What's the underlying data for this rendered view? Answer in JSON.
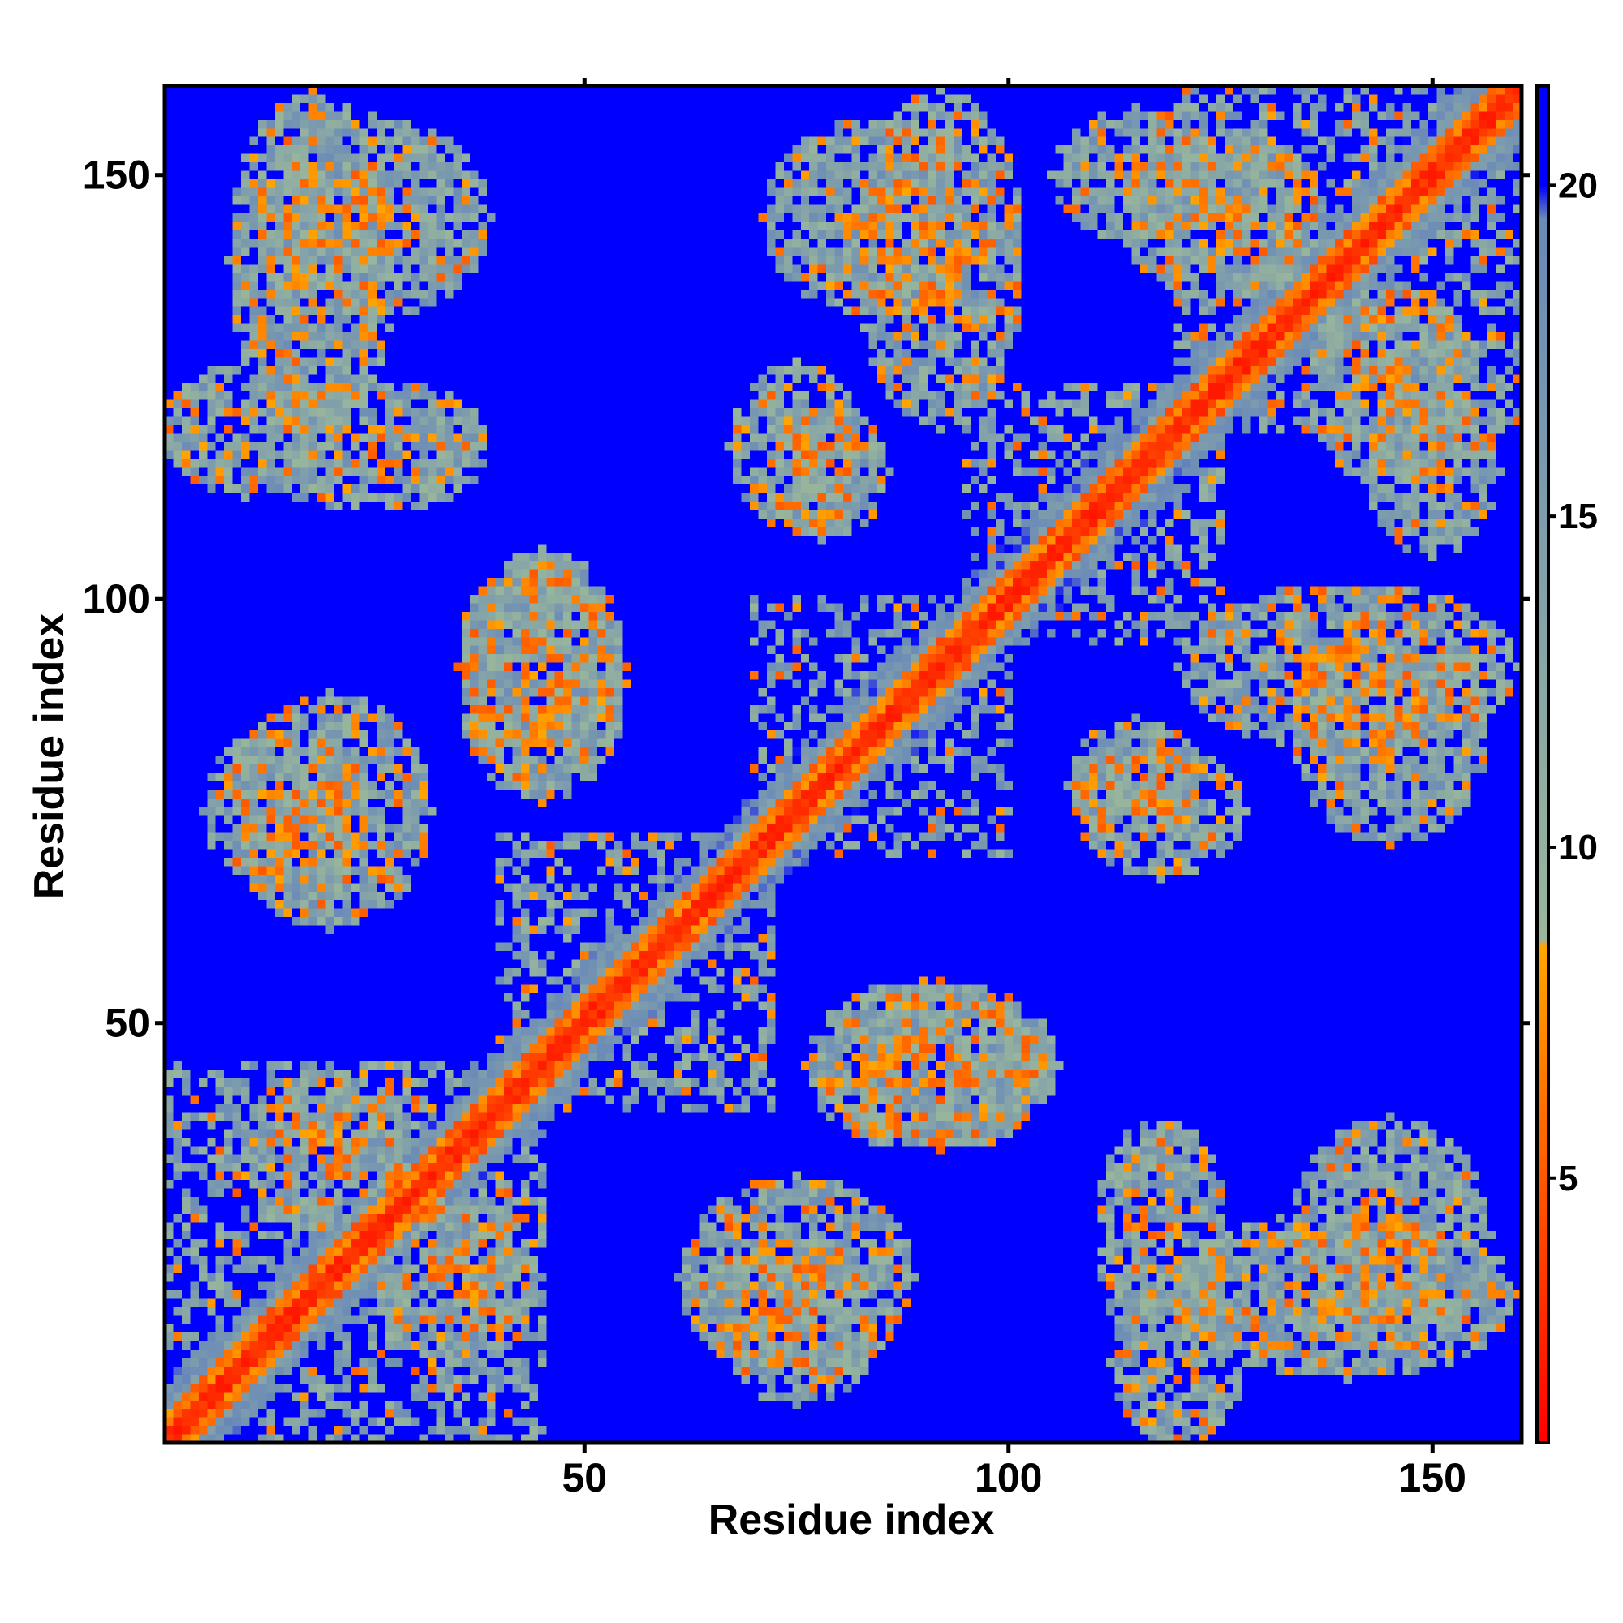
{
  "chart_data": {
    "type": "heatmap",
    "title": "",
    "xlabel": "Residue index",
    "ylabel": "Residue index",
    "n_residues": 160,
    "xlim": [
      1,
      160
    ],
    "ylim": [
      1,
      160
    ],
    "x_ticks": [
      50,
      100,
      150
    ],
    "y_ticks": [
      50,
      100,
      150
    ],
    "colorbar": {
      "ticks": [
        5,
        10,
        15,
        20
      ],
      "range": [
        1,
        21.5
      ],
      "color_stops": [
        {
          "value": 1,
          "color": "#ff0000"
        },
        {
          "value": 8.5,
          "color": "#ffa500"
        },
        {
          "value": 8.6,
          "color": "#9ab79b"
        },
        {
          "value": 19.5,
          "color": "#6a8ab8"
        },
        {
          "value": 20,
          "color": "#0000ff"
        }
      ]
    },
    "background_value": 21,
    "domains": [
      {
        "range": [
          1,
          45
        ],
        "strength": 0.85
      },
      {
        "range": [
          40,
          72
        ],
        "strength": 0.8
      },
      {
        "range": [
          70,
          100
        ],
        "strength": 0.8
      },
      {
        "range": [
          95,
          125
        ],
        "strength": 0.75
      },
      {
        "range": [
          120,
          160
        ],
        "strength": 0.85
      }
    ],
    "contact_patches": [
      {
        "x": 20,
        "y": 75,
        "rx": 12,
        "ry": 14
      },
      {
        "x": 10,
        "y": 120,
        "rx": 10,
        "ry": 8
      },
      {
        "x": 45,
        "y": 92,
        "rx": 10,
        "ry": 14
      },
      {
        "x": 18,
        "y": 140,
        "rx": 10,
        "ry": 20
      },
      {
        "x": 92,
        "y": 140,
        "rx": 10,
        "ry": 20
      },
      {
        "x": 75,
        "y": 118,
        "rx": 8,
        "ry": 10
      },
      {
        "x": 115,
        "y": 150,
        "rx": 10,
        "ry": 8
      },
      {
        "x": 115,
        "y": 78,
        "rx": 8,
        "ry": 8
      },
      {
        "x": 145,
        "y": 125,
        "rx": 10,
        "ry": 12
      },
      {
        "x": 145,
        "y": 85,
        "rx": 12,
        "ry": 14
      },
      {
        "x": 118,
        "y": 25,
        "rx": 8,
        "ry": 14
      },
      {
        "x": 75,
        "y": 15,
        "rx": 10,
        "ry": 10
      },
      {
        "x": 90,
        "y": 45,
        "rx": 14,
        "ry": 10
      },
      {
        "x": 145,
        "y": 25,
        "rx": 12,
        "ry": 14
      },
      {
        "x": 35,
        "y": 20,
        "rx": 10,
        "ry": 10
      }
    ]
  }
}
